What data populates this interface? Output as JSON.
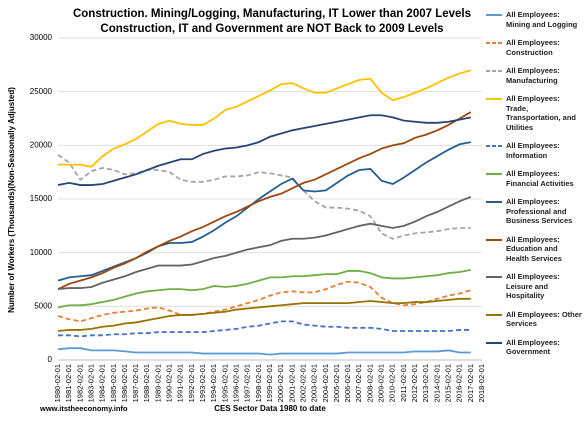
{
  "chart_data": {
    "type": "line",
    "title": [
      "Construction. Mining/Logging, Manufacturing, IT Lower than 2007 Levels",
      "Construction, IT and Government are NOT Back to 2009 Levels"
    ],
    "y_label": "Number of Workers (Thousands)(Non-Seasonally Adjusted)",
    "x_label": "CES Sector Data 1980 to date",
    "source": "www.itstheeconomy.info",
    "categories": [
      "1980-02-01",
      "1981-02-01",
      "1982-02-01",
      "1983-02-01",
      "1984-02-01",
      "1985-02-01",
      "1986-02-01",
      "1987-02-01",
      "1988-02-01",
      "1989-02-01",
      "1990-02-01",
      "1991-02-01",
      "1992-02-01",
      "1993-02-01",
      "1994-02-01",
      "1995-02-01",
      "1996-02-01",
      "1997-02-01",
      "1998-02-01",
      "1999-02-01",
      "2000-02-01",
      "2001-02-01",
      "2002-02-01",
      "2003-02-01",
      "2004-02-01",
      "2005-02-01",
      "2006-02-01",
      "2007-02-01",
      "2008-02-01",
      "2009-02-01",
      "2010-02-01",
      "2011-02-01",
      "2012-02-01",
      "2013-02-01",
      "2014-02-01",
      "2015-02-01",
      "2016-02-01",
      "2017-02-01",
      "2018-02-01"
    ],
    "ylim": [
      0,
      30000
    ],
    "yticks": [
      0,
      5000,
      10000,
      15000,
      20000,
      25000,
      30000
    ],
    "grid": true,
    "series": [
      {
        "name": "All Employees: Mining and Logging",
        "color": "#5b9bd5",
        "style": "solid",
        "values": [
          1000,
          1100,
          1100,
          900,
          900,
          900,
          800,
          700,
          700,
          700,
          700,
          700,
          700,
          600,
          600,
          600,
          600,
          600,
          600,
          500,
          600,
          600,
          600,
          600,
          600,
          600,
          700,
          700,
          700,
          700,
          700,
          700,
          800,
          800,
          800,
          900,
          700,
          700,
          null
        ]
      },
      {
        "name": "All Employees: Construction",
        "color": "#ed7d31",
        "style": "dashed",
        "values": [
          4100,
          3800,
          3600,
          3900,
          4200,
          4400,
          4500,
          4600,
          4800,
          4900,
          4600,
          4200,
          4200,
          4300,
          4500,
          4700,
          5000,
          5300,
          5600,
          6000,
          6300,
          6400,
          6300,
          6300,
          6600,
          7000,
          7300,
          7200,
          6800,
          5800,
          5300,
          5100,
          5200,
          5400,
          5700,
          6000,
          6200,
          6500,
          null
        ]
      },
      {
        "name": "All Employees: Manufacturing",
        "color": "#a5a5a5",
        "style": "dashed",
        "values": [
          19100,
          18400,
          16800,
          17600,
          17900,
          17700,
          17300,
          17400,
          17700,
          17700,
          17500,
          16800,
          16600,
          16600,
          16800,
          17100,
          17100,
          17200,
          17500,
          17400,
          17200,
          17000,
          15800,
          14800,
          14200,
          14200,
          14100,
          13900,
          13400,
          11800,
          11300,
          11600,
          11800,
          11900,
          12000,
          12200,
          12300,
          12300,
          null
        ]
      },
      {
        "name": "All Employees: Trade, Transportation, and Utilities",
        "color": "#ffc000",
        "style": "solid",
        "values": [
          18200,
          18200,
          18200,
          18000,
          19000,
          19700,
          20100,
          20600,
          21300,
          22000,
          22300,
          22000,
          21900,
          21900,
          22500,
          23300,
          23600,
          24100,
          24600,
          25100,
          25700,
          25800,
          25300,
          24900,
          24900,
          25300,
          25700,
          26100,
          26200,
          24900,
          24200,
          24500,
          24900,
          25300,
          25800,
          26300,
          26700,
          27000,
          null
        ]
      },
      {
        "name": "All Employees: Information",
        "color": "#4472c4",
        "style": "dashed",
        "values": [
          2300,
          2300,
          2200,
          2300,
          2300,
          2400,
          2400,
          2500,
          2500,
          2600,
          2600,
          2600,
          2600,
          2600,
          2700,
          2800,
          2900,
          3100,
          3200,
          3400,
          3600,
          3600,
          3300,
          3200,
          3100,
          3100,
          3000,
          3000,
          3000,
          2900,
          2700,
          2700,
          2700,
          2700,
          2700,
          2700,
          2800,
          2800,
          null
        ]
      },
      {
        "name": "All Employees: Financial Activities",
        "color": "#70ad47",
        "style": "solid",
        "values": [
          4900,
          5100,
          5100,
          5200,
          5400,
          5600,
          5900,
          6200,
          6400,
          6500,
          6600,
          6600,
          6500,
          6600,
          6900,
          6800,
          6900,
          7100,
          7400,
          7700,
          7700,
          7800,
          7800,
          7900,
          8000,
          8000,
          8300,
          8300,
          8100,
          7700,
          7600,
          7600,
          7700,
          7800,
          7900,
          8100,
          8200,
          8400,
          null
        ]
      },
      {
        "name": "All Employees: Professional and Business Services",
        "color": "#255e91",
        "style": "solid",
        "values": [
          7400,
          7700,
          7800,
          7900,
          8300,
          8700,
          9100,
          9500,
          10000,
          10600,
          10900,
          10900,
          11000,
          11500,
          12100,
          12800,
          13400,
          14200,
          15000,
          15700,
          16400,
          16900,
          15800,
          15700,
          15800,
          16500,
          17200,
          17700,
          17800,
          16700,
          16400,
          17000,
          17700,
          18400,
          19000,
          19600,
          20100,
          20300,
          null
        ]
      },
      {
        "name": "All Employees: Education and Health Services",
        "color": "#9e480e",
        "style": "solid",
        "values": [
          6600,
          7100,
          7400,
          7700,
          8100,
          8600,
          9000,
          9500,
          10100,
          10600,
          11100,
          11500,
          12000,
          12400,
          12900,
          13400,
          13800,
          14300,
          14800,
          15200,
          15500,
          16000,
          16500,
          16800,
          17300,
          17800,
          18300,
          18800,
          19200,
          19700,
          20000,
          20200,
          20700,
          21000,
          21400,
          21900,
          22500,
          23100,
          null
        ]
      },
      {
        "name": "All Employees: Leisure and Hospitality",
        "color": "#636363",
        "style": "solid",
        "values": [
          6600,
          6700,
          6700,
          6800,
          7200,
          7500,
          7800,
          8200,
          8500,
          8800,
          8800,
          8800,
          8900,
          9200,
          9500,
          9700,
          10000,
          10300,
          10500,
          10700,
          11100,
          11300,
          11300,
          11400,
          11600,
          11900,
          12200,
          12500,
          12700,
          12500,
          12300,
          12500,
          12900,
          13400,
          13800,
          14300,
          14800,
          15200,
          null
        ]
      },
      {
        "name": "All Employees: Other Services",
        "color": "#997300",
        "style": "solid",
        "values": [
          2700,
          2800,
          2800,
          2900,
          3100,
          3200,
          3400,
          3500,
          3700,
          3900,
          4100,
          4200,
          4200,
          4300,
          4400,
          4500,
          4700,
          4800,
          4900,
          5000,
          5100,
          5200,
          5300,
          5300,
          5300,
          5300,
          5300,
          5400,
          5500,
          5400,
          5300,
          5300,
          5400,
          5400,
          5500,
          5600,
          5700,
          5700,
          null
        ]
      },
      {
        "name": "All Employees: Government",
        "color": "#264478",
        "style": "solid",
        "values": [
          16300,
          16500,
          16300,
          16300,
          16400,
          16700,
          17000,
          17300,
          17700,
          18100,
          18400,
          18700,
          18700,
          19200,
          19500,
          19700,
          19800,
          20000,
          20300,
          20800,
          21100,
          21400,
          21600,
          21800,
          22000,
          22200,
          22400,
          22600,
          22800,
          22800,
          22600,
          22300,
          22200,
          22100,
          22100,
          22200,
          22400,
          22600,
          null
        ]
      }
    ]
  }
}
